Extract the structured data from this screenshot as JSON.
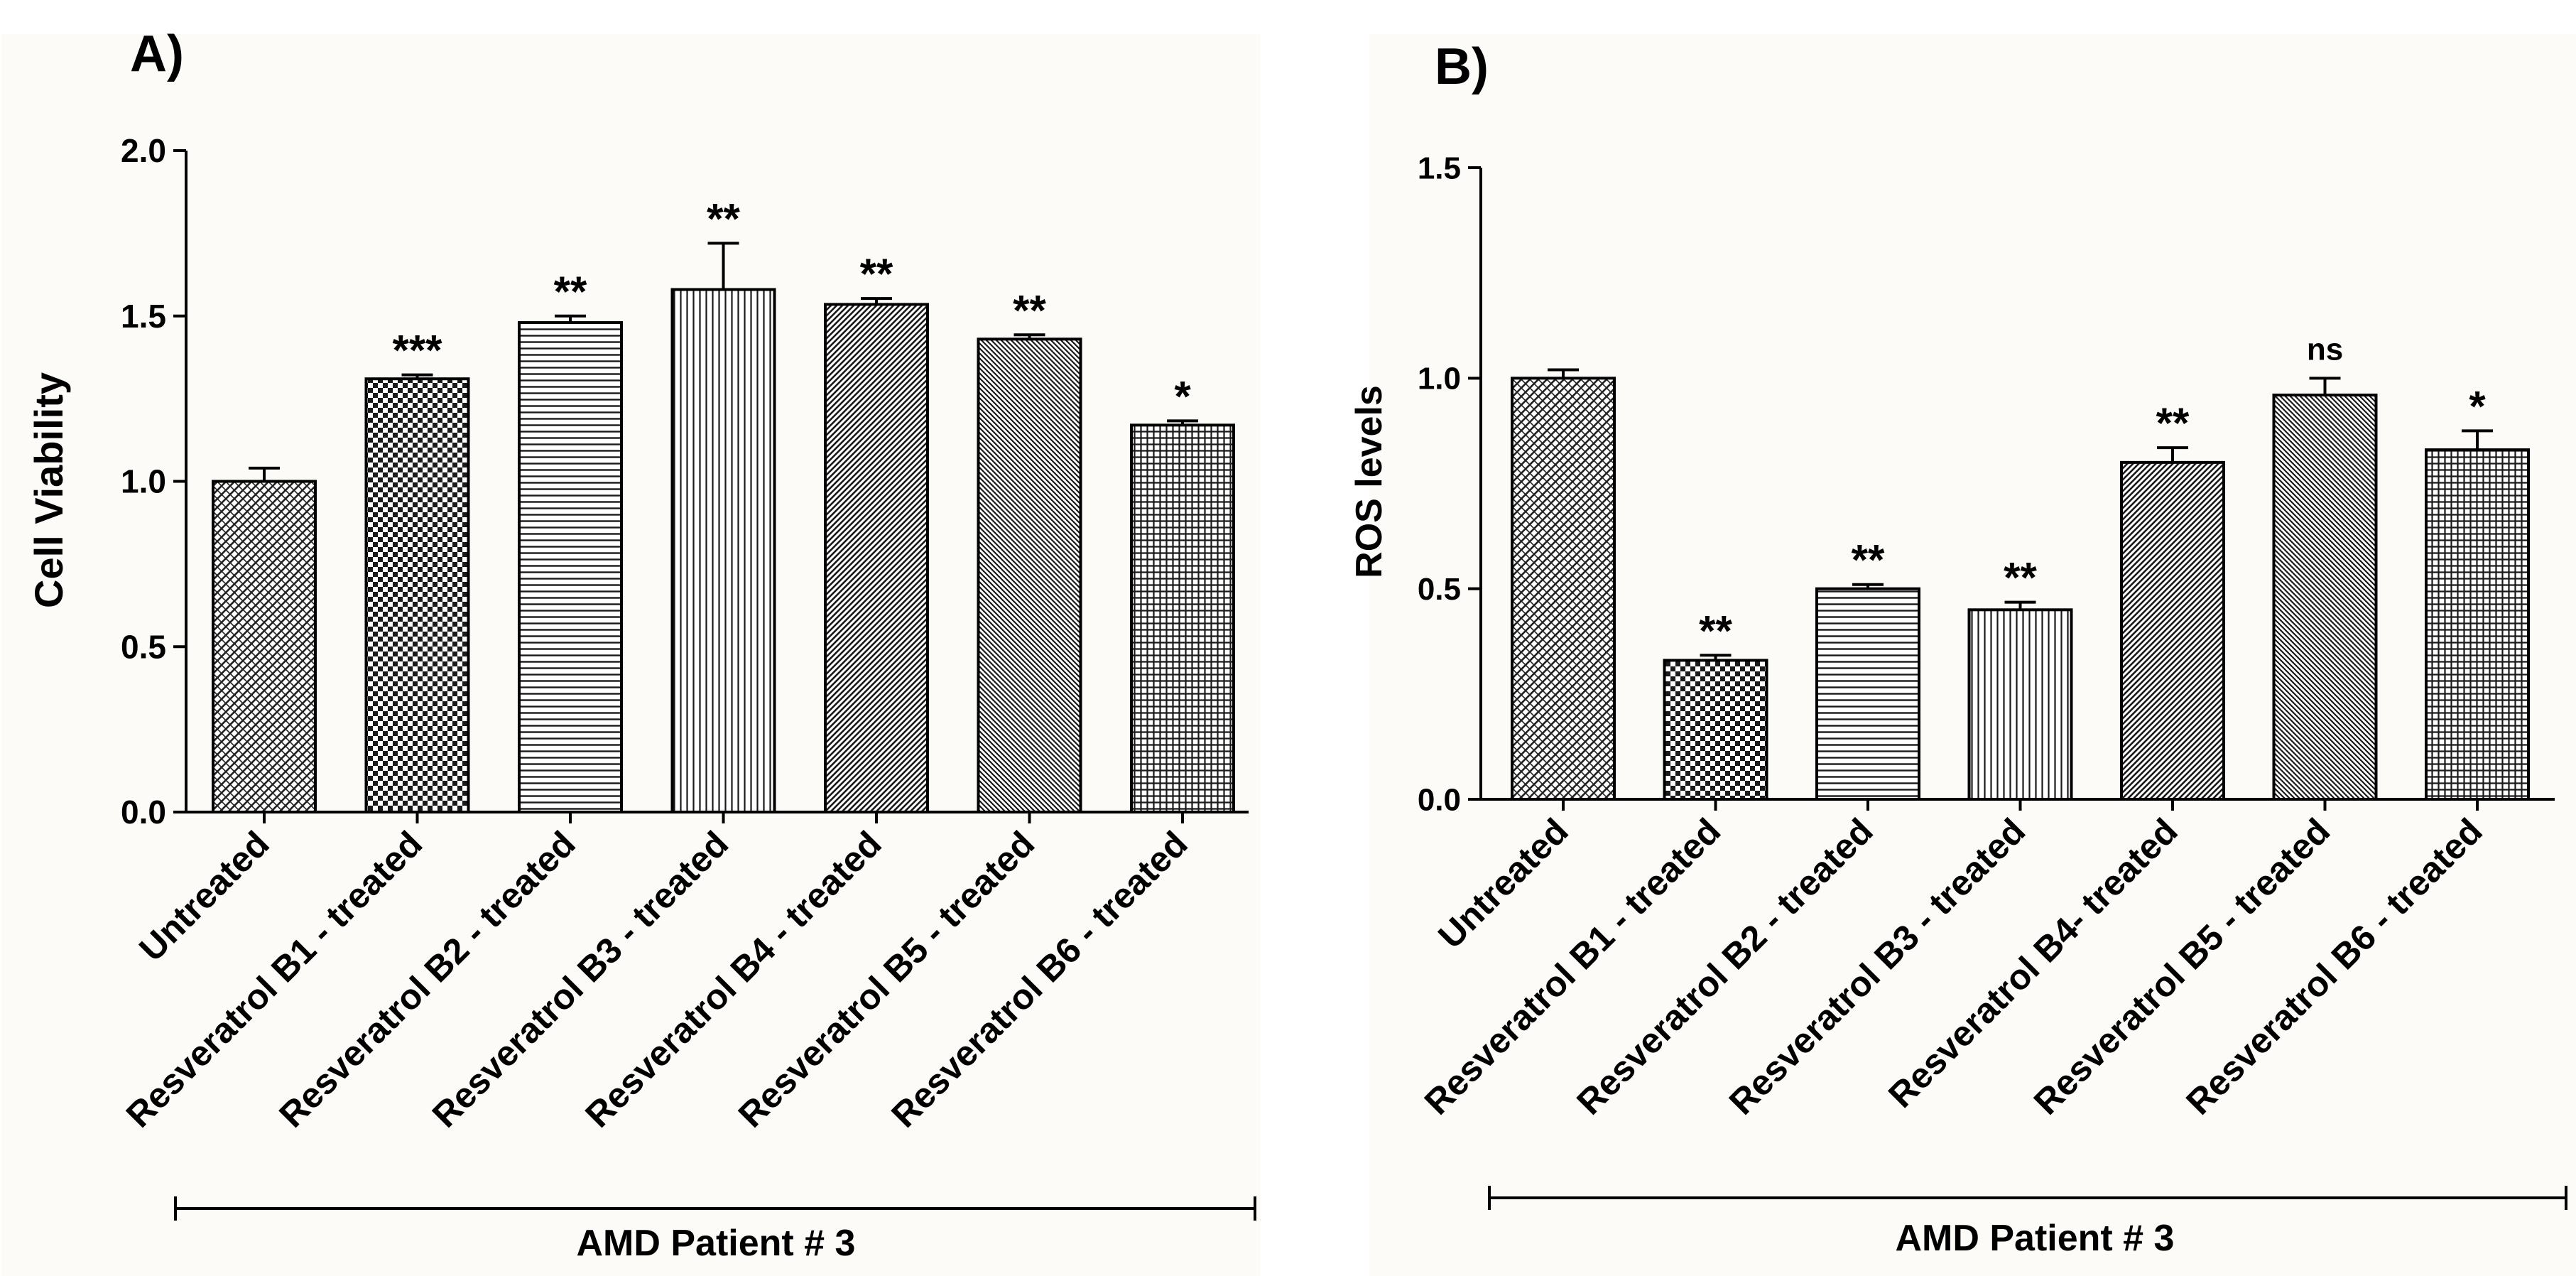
{
  "chart_data": [
    {
      "panel_label": "A)",
      "type": "bar",
      "ylabel": "Cell Viability",
      "ylim": [
        0,
        2.0
      ],
      "yticks": [
        "0.0",
        "0.5",
        "1.0",
        "1.5",
        "2.0"
      ],
      "ytick_values": [
        0,
        0.5,
        1.0,
        1.5,
        2.0
      ],
      "group_label": "AMD Patient # 3",
      "categories": [
        "Untreated",
        "Resveratrol B1 - treated",
        "Resveratrol B2 - treated",
        "Resveratrol B3 - treated",
        "Resveratrol B4 - treated",
        "Resveratrol B5 - treated",
        "Resveratrol B6 - treated"
      ],
      "values": [
        1.0,
        1.31,
        1.48,
        1.58,
        1.535,
        1.43,
        1.17
      ],
      "errors": [
        0.04,
        0.012,
        0.02,
        0.14,
        0.018,
        0.013,
        0.013
      ],
      "significance": [
        "",
        "***",
        "**",
        "**",
        "**",
        "**",
        "*"
      ],
      "patterns": [
        "diag-cross",
        "checker",
        "hlines",
        "vlines",
        "diag-dense",
        "diag-fine",
        "grid"
      ]
    },
    {
      "panel_label": "B)",
      "type": "bar",
      "ylabel": "ROS levels",
      "ylim": [
        0,
        1.5
      ],
      "yticks": [
        "0.0",
        "0.5",
        "1.0",
        "1.5"
      ],
      "ytick_values": [
        0,
        0.5,
        1.0,
        1.5
      ],
      "group_label": "AMD Patient # 3",
      "categories": [
        "Untreated",
        "Resveratrol B1 - treated",
        "Resveratrol B2 - treated",
        "Resveratrol B3 - treated",
        "Resveratrol B4- treated",
        "Resveratrol B5 - treated",
        "Resveratrol B6 - treated"
      ],
      "values": [
        1.0,
        0.33,
        0.5,
        0.45,
        0.8,
        0.96,
        0.83
      ],
      "errors": [
        0.02,
        0.012,
        0.01,
        0.018,
        0.035,
        0.04,
        0.045
      ],
      "significance": [
        "",
        "**",
        "**",
        "**",
        "**",
        "ns",
        "*"
      ],
      "patterns": [
        "diag-cross",
        "checker",
        "hlines",
        "vlines",
        "diag-dense",
        "diag-fine",
        "grid"
      ]
    }
  ]
}
